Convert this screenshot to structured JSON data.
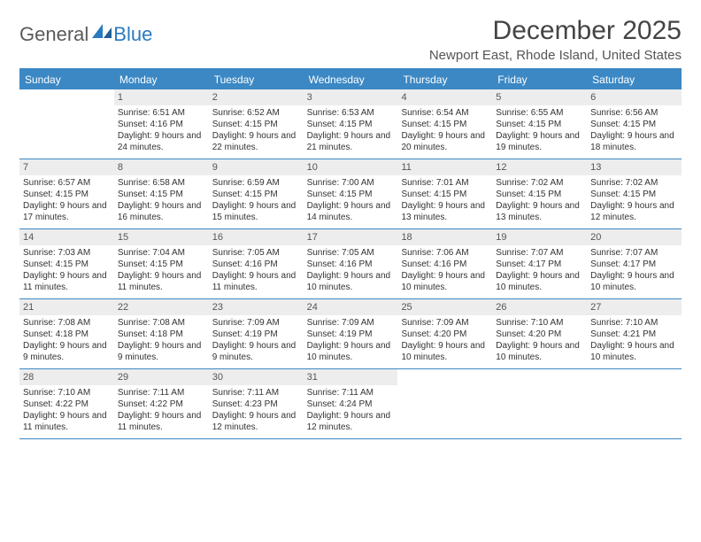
{
  "logo": {
    "text1": "General",
    "text2": "Blue"
  },
  "title": "December 2025",
  "location": "Newport East, Rhode Island, United States",
  "colors": {
    "header_bg": "#3b88c4",
    "header_text": "#ffffff",
    "daynum_bg": "#ededed",
    "border": "#3b88c4",
    "logo_blue": "#2a7abf"
  },
  "day_names": [
    "Sunday",
    "Monday",
    "Tuesday",
    "Wednesday",
    "Thursday",
    "Friday",
    "Saturday"
  ],
  "weeks": [
    [
      {
        "n": "",
        "empty": true
      },
      {
        "n": "1",
        "sr": "6:51 AM",
        "ss": "4:16 PM",
        "dl": "9 hours and 24 minutes."
      },
      {
        "n": "2",
        "sr": "6:52 AM",
        "ss": "4:15 PM",
        "dl": "9 hours and 22 minutes."
      },
      {
        "n": "3",
        "sr": "6:53 AM",
        "ss": "4:15 PM",
        "dl": "9 hours and 21 minutes."
      },
      {
        "n": "4",
        "sr": "6:54 AM",
        "ss": "4:15 PM",
        "dl": "9 hours and 20 minutes."
      },
      {
        "n": "5",
        "sr": "6:55 AM",
        "ss": "4:15 PM",
        "dl": "9 hours and 19 minutes."
      },
      {
        "n": "6",
        "sr": "6:56 AM",
        "ss": "4:15 PM",
        "dl": "9 hours and 18 minutes."
      }
    ],
    [
      {
        "n": "7",
        "sr": "6:57 AM",
        "ss": "4:15 PM",
        "dl": "9 hours and 17 minutes."
      },
      {
        "n": "8",
        "sr": "6:58 AM",
        "ss": "4:15 PM",
        "dl": "9 hours and 16 minutes."
      },
      {
        "n": "9",
        "sr": "6:59 AM",
        "ss": "4:15 PM",
        "dl": "9 hours and 15 minutes."
      },
      {
        "n": "10",
        "sr": "7:00 AM",
        "ss": "4:15 PM",
        "dl": "9 hours and 14 minutes."
      },
      {
        "n": "11",
        "sr": "7:01 AM",
        "ss": "4:15 PM",
        "dl": "9 hours and 13 minutes."
      },
      {
        "n": "12",
        "sr": "7:02 AM",
        "ss": "4:15 PM",
        "dl": "9 hours and 13 minutes."
      },
      {
        "n": "13",
        "sr": "7:02 AM",
        "ss": "4:15 PM",
        "dl": "9 hours and 12 minutes."
      }
    ],
    [
      {
        "n": "14",
        "sr": "7:03 AM",
        "ss": "4:15 PM",
        "dl": "9 hours and 11 minutes."
      },
      {
        "n": "15",
        "sr": "7:04 AM",
        "ss": "4:15 PM",
        "dl": "9 hours and 11 minutes."
      },
      {
        "n": "16",
        "sr": "7:05 AM",
        "ss": "4:16 PM",
        "dl": "9 hours and 11 minutes."
      },
      {
        "n": "17",
        "sr": "7:05 AM",
        "ss": "4:16 PM",
        "dl": "9 hours and 10 minutes."
      },
      {
        "n": "18",
        "sr": "7:06 AM",
        "ss": "4:16 PM",
        "dl": "9 hours and 10 minutes."
      },
      {
        "n": "19",
        "sr": "7:07 AM",
        "ss": "4:17 PM",
        "dl": "9 hours and 10 minutes."
      },
      {
        "n": "20",
        "sr": "7:07 AM",
        "ss": "4:17 PM",
        "dl": "9 hours and 10 minutes."
      }
    ],
    [
      {
        "n": "21",
        "sr": "7:08 AM",
        "ss": "4:18 PM",
        "dl": "9 hours and 9 minutes."
      },
      {
        "n": "22",
        "sr": "7:08 AM",
        "ss": "4:18 PM",
        "dl": "9 hours and 9 minutes."
      },
      {
        "n": "23",
        "sr": "7:09 AM",
        "ss": "4:19 PM",
        "dl": "9 hours and 9 minutes."
      },
      {
        "n": "24",
        "sr": "7:09 AM",
        "ss": "4:19 PM",
        "dl": "9 hours and 10 minutes."
      },
      {
        "n": "25",
        "sr": "7:09 AM",
        "ss": "4:20 PM",
        "dl": "9 hours and 10 minutes."
      },
      {
        "n": "26",
        "sr": "7:10 AM",
        "ss": "4:20 PM",
        "dl": "9 hours and 10 minutes."
      },
      {
        "n": "27",
        "sr": "7:10 AM",
        "ss": "4:21 PM",
        "dl": "9 hours and 10 minutes."
      }
    ],
    [
      {
        "n": "28",
        "sr": "7:10 AM",
        "ss": "4:22 PM",
        "dl": "9 hours and 11 minutes."
      },
      {
        "n": "29",
        "sr": "7:11 AM",
        "ss": "4:22 PM",
        "dl": "9 hours and 11 minutes."
      },
      {
        "n": "30",
        "sr": "7:11 AM",
        "ss": "4:23 PM",
        "dl": "9 hours and 12 minutes."
      },
      {
        "n": "31",
        "sr": "7:11 AM",
        "ss": "4:24 PM",
        "dl": "9 hours and 12 minutes."
      },
      {
        "n": "",
        "empty": true
      },
      {
        "n": "",
        "empty": true
      },
      {
        "n": "",
        "empty": true
      }
    ]
  ],
  "labels": {
    "sunrise": "Sunrise:",
    "sunset": "Sunset:",
    "daylight": "Daylight:"
  }
}
